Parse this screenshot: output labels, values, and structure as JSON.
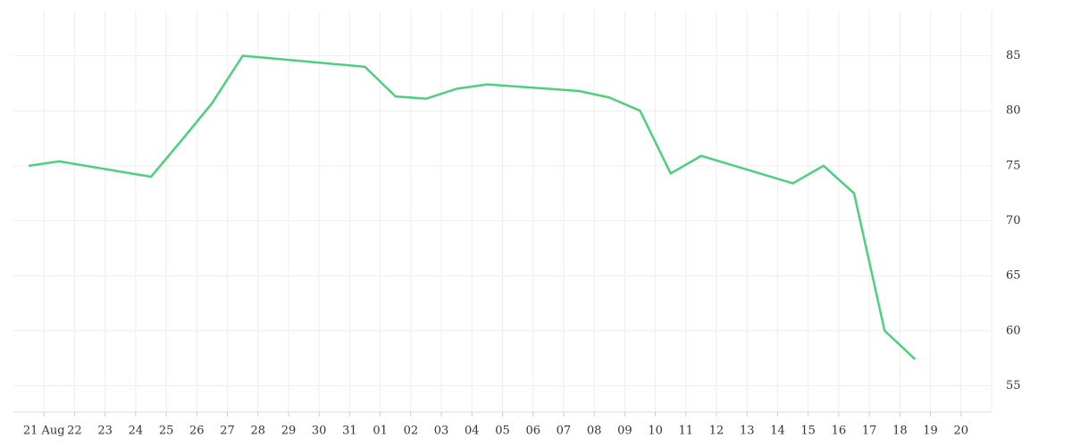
{
  "chart_data": {
    "type": "line",
    "x": [
      -0.5,
      0.5,
      3.5,
      4.5,
      5.5,
      6.5,
      10.5,
      11.5,
      12.5,
      13.5,
      14.5,
      17.5,
      18.5,
      19.5,
      20.5,
      21.5,
      24.5,
      25.5,
      26.5,
      27.5,
      28.5
    ],
    "values": [
      75.0,
      75.4,
      74.0,
      77.3,
      80.7,
      85.0,
      84.0,
      81.3,
      81.1,
      82.0,
      82.4,
      81.8,
      81.2,
      80.0,
      74.3,
      75.9,
      73.4,
      75.0,
      72.5,
      60.0,
      57.4
    ],
    "color": "#4cd07d",
    "xlim": [
      -1,
      31
    ],
    "xticks": [
      {
        "value": 0,
        "label": "21 Aug"
      },
      {
        "value": 1,
        "label": "22"
      },
      {
        "value": 2,
        "label": "23"
      },
      {
        "value": 3,
        "label": "24"
      },
      {
        "value": 4,
        "label": "25"
      },
      {
        "value": 5,
        "label": "26"
      },
      {
        "value": 6,
        "label": "27"
      },
      {
        "value": 7,
        "label": "28"
      },
      {
        "value": 8,
        "label": "29"
      },
      {
        "value": 9,
        "label": "30"
      },
      {
        "value": 10,
        "label": "31"
      },
      {
        "value": 11,
        "label": "01"
      },
      {
        "value": 12,
        "label": "02"
      },
      {
        "value": 13,
        "label": "03"
      },
      {
        "value": 14,
        "label": "04"
      },
      {
        "value": 15,
        "label": "05"
      },
      {
        "value": 16,
        "label": "06"
      },
      {
        "value": 17,
        "label": "07"
      },
      {
        "value": 18,
        "label": "08"
      },
      {
        "value": 19,
        "label": "09"
      },
      {
        "value": 20,
        "label": "10"
      },
      {
        "value": 21,
        "label": "11"
      },
      {
        "value": 22,
        "label": "12"
      },
      {
        "value": 23,
        "label": "13"
      },
      {
        "value": 24,
        "label": "14"
      },
      {
        "value": 25,
        "label": "15"
      },
      {
        "value": 26,
        "label": "16"
      },
      {
        "value": 27,
        "label": "17"
      },
      {
        "value": 28,
        "label": "18"
      },
      {
        "value": 29,
        "label": "19"
      },
      {
        "value": 30,
        "label": "20"
      }
    ],
    "ylim": [
      52.6,
      89.1
    ],
    "yticks": [
      55,
      60,
      65,
      70,
      75,
      80,
      85
    ],
    "grid": true
  }
}
